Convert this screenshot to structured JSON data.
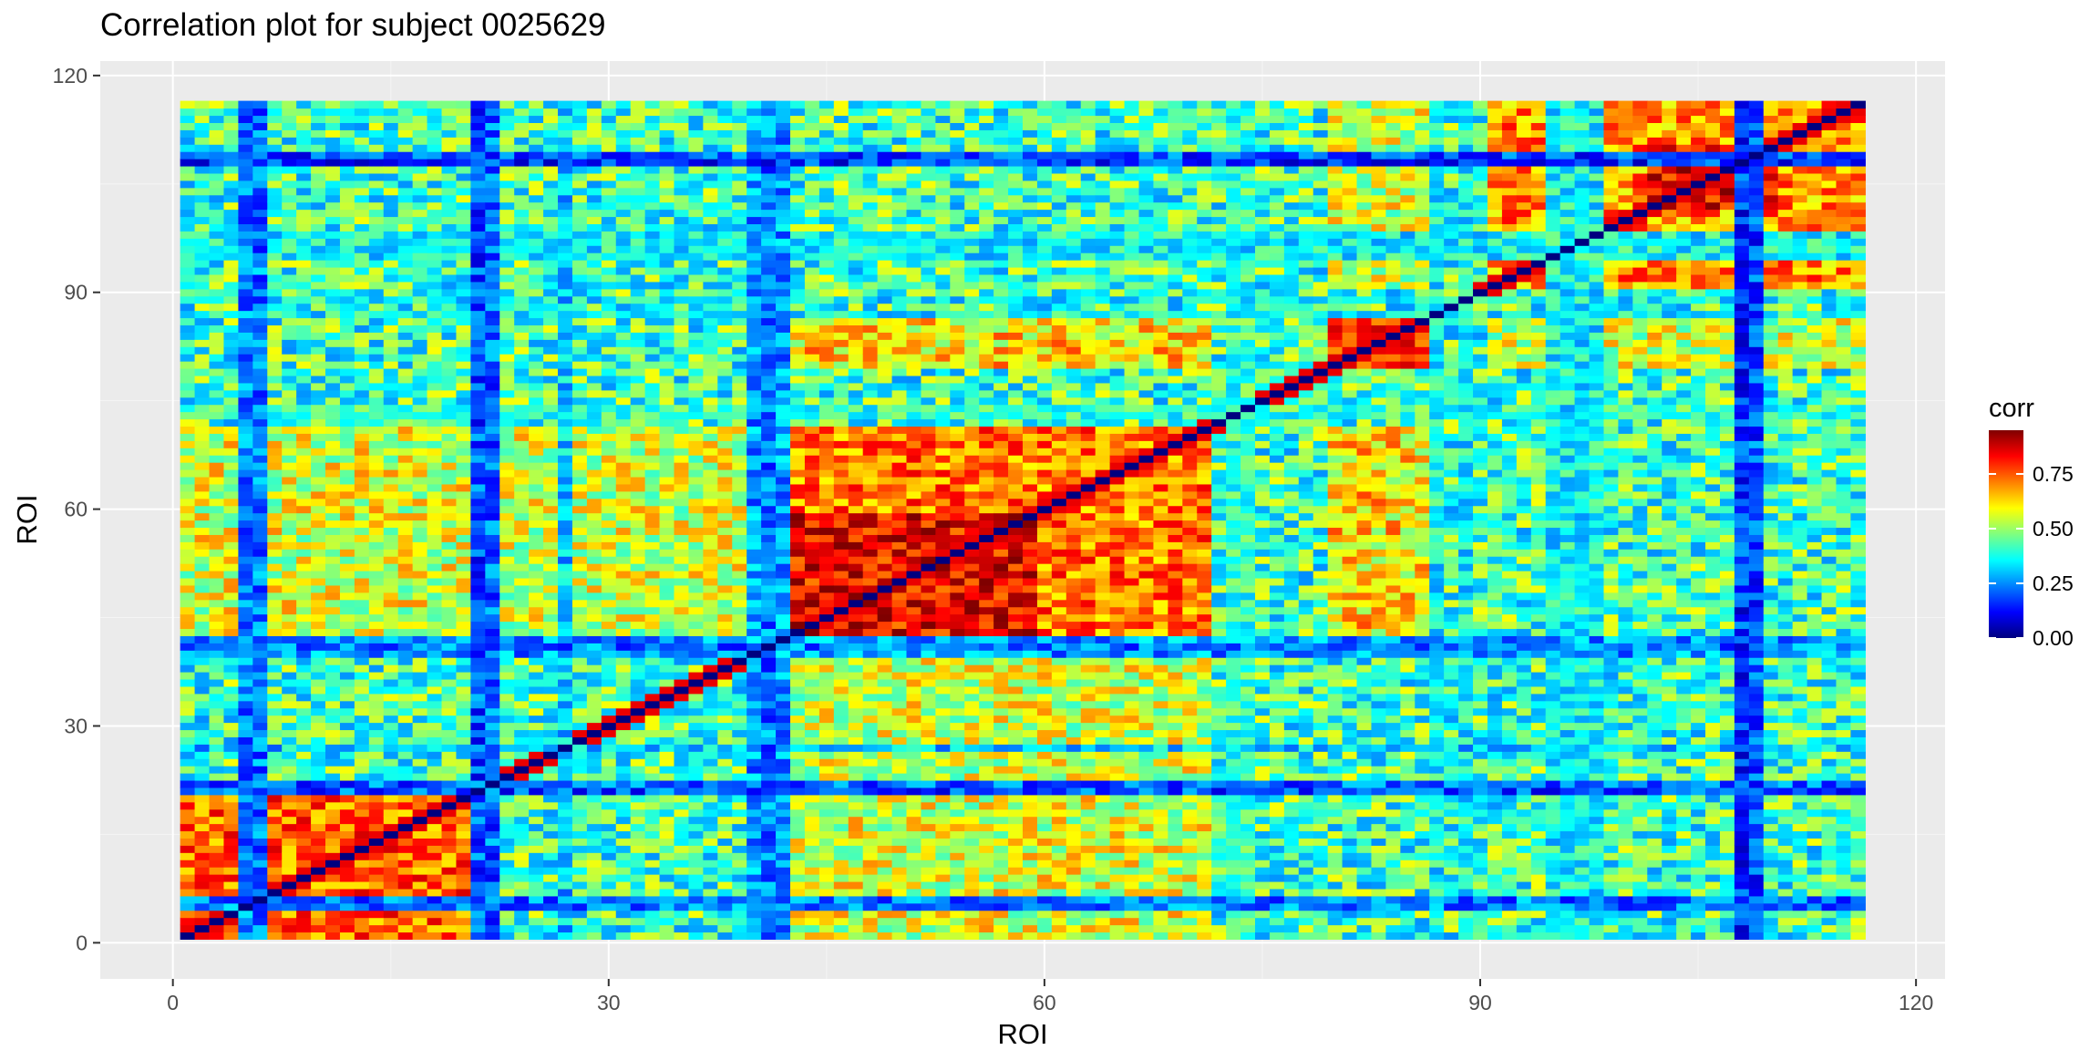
{
  "chart_data": {
    "type": "heatmap",
    "title": "Correlation plot for subject 0025629",
    "xlabel": "ROI",
    "ylabel": "ROI",
    "xlim": [
      -5,
      122
    ],
    "ylim": [
      -5,
      122
    ],
    "x_ticks": [
      0,
      30,
      60,
      90,
      120
    ],
    "y_ticks": [
      0,
      30,
      60,
      90,
      120
    ],
    "x_tick_labels": [
      "0",
      "30",
      "60",
      "90",
      "120"
    ],
    "y_tick_labels": [
      "0",
      "30",
      "60",
      "90",
      "120"
    ],
    "n_rois": 116,
    "value_range": [
      0,
      1
    ],
    "grid": true,
    "legend": {
      "title": "corr",
      "placement": "right",
      "breaks": [
        0.0,
        0.25,
        0.5,
        0.75
      ],
      "break_labels": [
        "0.00",
        "0.25",
        "0.50",
        "0.75"
      ],
      "min": 0.0,
      "max": 0.95
    },
    "colors": {
      "panel_background": "#ebebeb",
      "grid_major": "#ffffff",
      "grid_minor": "#f5f5f5",
      "palette": [
        "#00007f",
        "#0000ff",
        "#007fff",
        "#00ffff",
        "#7fff7f",
        "#ffff00",
        "#ff7f00",
        "#ff0000",
        "#7f0000"
      ]
    },
    "description_blocks": {
      "high_modules": [
        [
          1,
          22,
          0.74
        ],
        [
          43,
          71,
          0.72
        ],
        [
          43,
          59,
          0.84
        ],
        [
          80,
          87,
          0.78
        ],
        [
          91,
          116,
          0.7
        ],
        [
          102,
          110,
          0.84
        ]
      ],
      "high_cross": [
        [
          1,
          22,
          43,
          71,
          0.56
        ],
        [
          80,
          87,
          43,
          71,
          0.62
        ],
        [
          91,
          116,
          80,
          87,
          0.55
        ],
        [
          23,
          40,
          43,
          71,
          0.55
        ]
      ],
      "low_rows": [
        5,
        6,
        21,
        22,
        27,
        40,
        41,
        42,
        73,
        74,
        87,
        89,
        95,
        96,
        97,
        98,
        108,
        109
      ],
      "low_strength": [
        0.12,
        0.12,
        0.08,
        0.1,
        0.2,
        0.15,
        0.12,
        0.15,
        0.3,
        0.3,
        0.25,
        0.25,
        0.25,
        0.25,
        0.25,
        0.25,
        0.05,
        0.08
      ]
    }
  }
}
